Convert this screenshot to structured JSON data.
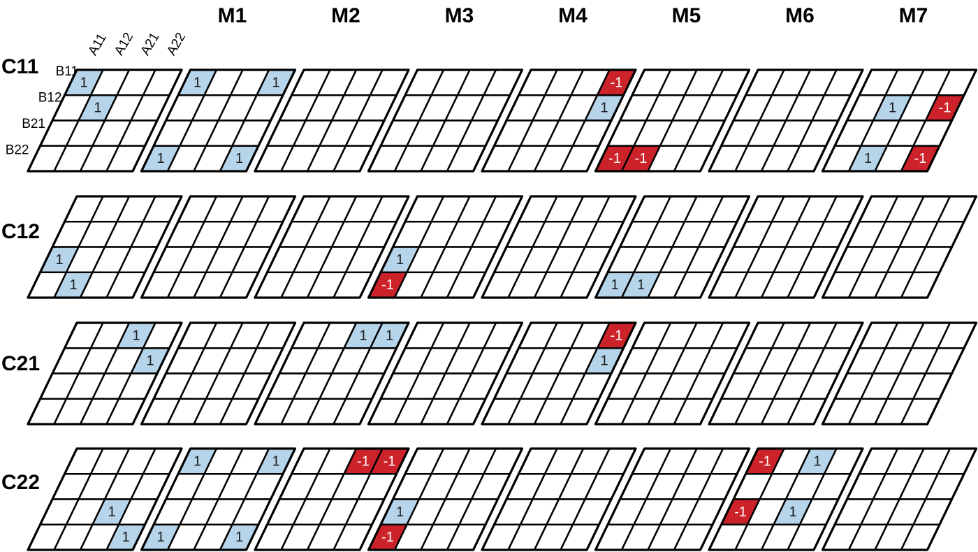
{
  "column_headers": [
    "M1",
    "M2",
    "M3",
    "M4",
    "M5",
    "M6",
    "M7"
  ],
  "a_labels": [
    "A11",
    "A12",
    "A21",
    "A22"
  ],
  "b_labels": [
    "B11",
    "B12",
    "B21",
    "B22"
  ],
  "rows": [
    {
      "label": "C11",
      "grids": [
        [
          [
            1,
            null,
            null,
            null
          ],
          [
            null,
            1,
            null,
            null
          ],
          [
            null,
            null,
            null,
            null
          ],
          [
            null,
            null,
            null,
            null
          ]
        ],
        [
          [
            1,
            null,
            null,
            1
          ],
          [
            null,
            null,
            null,
            null
          ],
          [
            null,
            null,
            null,
            null
          ],
          [
            1,
            null,
            null,
            1
          ]
        ],
        [
          [
            null,
            null,
            null,
            null
          ],
          [
            null,
            null,
            null,
            null
          ],
          [
            null,
            null,
            null,
            null
          ],
          [
            null,
            null,
            null,
            null
          ]
        ],
        [
          [
            null,
            null,
            null,
            null
          ],
          [
            null,
            null,
            null,
            null
          ],
          [
            null,
            null,
            null,
            null
          ],
          [
            null,
            null,
            null,
            null
          ]
        ],
        [
          [
            null,
            null,
            null,
            -1
          ],
          [
            null,
            null,
            null,
            1
          ],
          [
            null,
            null,
            null,
            null
          ],
          [
            null,
            null,
            null,
            null
          ]
        ],
        [
          [
            null,
            null,
            null,
            null
          ],
          [
            null,
            null,
            null,
            null
          ],
          [
            null,
            null,
            null,
            null
          ],
          [
            -1,
            -1,
            null,
            null
          ]
        ],
        [
          [
            null,
            null,
            null,
            null
          ],
          [
            null,
            null,
            null,
            null
          ],
          [
            null,
            null,
            null,
            null
          ],
          [
            null,
            null,
            null,
            null
          ]
        ],
        [
          [
            null,
            null,
            null,
            null
          ],
          [
            null,
            1,
            null,
            -1
          ],
          [
            null,
            null,
            null,
            null
          ],
          [
            null,
            1,
            null,
            -1
          ]
        ]
      ]
    },
    {
      "label": "C12",
      "grids": [
        [
          [
            null,
            null,
            null,
            null
          ],
          [
            null,
            null,
            null,
            null
          ],
          [
            1,
            null,
            null,
            null
          ],
          [
            null,
            1,
            null,
            null
          ]
        ],
        [
          [
            null,
            null,
            null,
            null
          ],
          [
            null,
            null,
            null,
            null
          ],
          [
            null,
            null,
            null,
            null
          ],
          [
            null,
            null,
            null,
            null
          ]
        ],
        [
          [
            null,
            null,
            null,
            null
          ],
          [
            null,
            null,
            null,
            null
          ],
          [
            null,
            null,
            null,
            null
          ],
          [
            null,
            null,
            null,
            null
          ]
        ],
        [
          [
            null,
            null,
            null,
            null
          ],
          [
            null,
            null,
            null,
            null
          ],
          [
            1,
            null,
            null,
            null
          ],
          [
            -1,
            null,
            null,
            null
          ]
        ],
        [
          [
            null,
            null,
            null,
            null
          ],
          [
            null,
            null,
            null,
            null
          ],
          [
            null,
            null,
            null,
            null
          ],
          [
            null,
            null,
            null,
            null
          ]
        ],
        [
          [
            null,
            null,
            null,
            null
          ],
          [
            null,
            null,
            null,
            null
          ],
          [
            null,
            null,
            null,
            null
          ],
          [
            1,
            1,
            null,
            null
          ]
        ],
        [
          [
            null,
            null,
            null,
            null
          ],
          [
            null,
            null,
            null,
            null
          ],
          [
            null,
            null,
            null,
            null
          ],
          [
            null,
            null,
            null,
            null
          ]
        ],
        [
          [
            null,
            null,
            null,
            null
          ],
          [
            null,
            null,
            null,
            null
          ],
          [
            null,
            null,
            null,
            null
          ],
          [
            null,
            null,
            null,
            null
          ]
        ]
      ]
    },
    {
      "label": "C21",
      "grids": [
        [
          [
            null,
            null,
            1,
            null
          ],
          [
            null,
            null,
            null,
            1
          ],
          [
            null,
            null,
            null,
            null
          ],
          [
            null,
            null,
            null,
            null
          ]
        ],
        [
          [
            null,
            null,
            null,
            null
          ],
          [
            null,
            null,
            null,
            null
          ],
          [
            null,
            null,
            null,
            null
          ],
          [
            null,
            null,
            null,
            null
          ]
        ],
        [
          [
            null,
            null,
            1,
            1
          ],
          [
            null,
            null,
            null,
            null
          ],
          [
            null,
            null,
            null,
            null
          ],
          [
            null,
            null,
            null,
            null
          ]
        ],
        [
          [
            null,
            null,
            null,
            null
          ],
          [
            null,
            null,
            null,
            null
          ],
          [
            null,
            null,
            null,
            null
          ],
          [
            null,
            null,
            null,
            null
          ]
        ],
        [
          [
            null,
            null,
            null,
            -1
          ],
          [
            null,
            null,
            null,
            1
          ],
          [
            null,
            null,
            null,
            null
          ],
          [
            null,
            null,
            null,
            null
          ]
        ],
        [
          [
            null,
            null,
            null,
            null
          ],
          [
            null,
            null,
            null,
            null
          ],
          [
            null,
            null,
            null,
            null
          ],
          [
            null,
            null,
            null,
            null
          ]
        ],
        [
          [
            null,
            null,
            null,
            null
          ],
          [
            null,
            null,
            null,
            null
          ],
          [
            null,
            null,
            null,
            null
          ],
          [
            null,
            null,
            null,
            null
          ]
        ],
        [
          [
            null,
            null,
            null,
            null
          ],
          [
            null,
            null,
            null,
            null
          ],
          [
            null,
            null,
            null,
            null
          ],
          [
            null,
            null,
            null,
            null
          ]
        ]
      ]
    },
    {
      "label": "C22",
      "grids": [
        [
          [
            null,
            null,
            null,
            null
          ],
          [
            null,
            null,
            null,
            null
          ],
          [
            null,
            null,
            1,
            null
          ],
          [
            null,
            null,
            null,
            1
          ]
        ],
        [
          [
            1,
            null,
            null,
            1
          ],
          [
            null,
            null,
            null,
            null
          ],
          [
            null,
            null,
            null,
            null
          ],
          [
            1,
            null,
            null,
            1
          ]
        ],
        [
          [
            null,
            null,
            -1,
            -1
          ],
          [
            null,
            null,
            null,
            null
          ],
          [
            null,
            null,
            null,
            null
          ],
          [
            null,
            null,
            null,
            null
          ]
        ],
        [
          [
            null,
            null,
            null,
            null
          ],
          [
            null,
            null,
            null,
            null
          ],
          [
            1,
            null,
            null,
            null
          ],
          [
            -1,
            null,
            null,
            null
          ]
        ],
        [
          [
            null,
            null,
            null,
            null
          ],
          [
            null,
            null,
            null,
            null
          ],
          [
            null,
            null,
            null,
            null
          ],
          [
            null,
            null,
            null,
            null
          ]
        ],
        [
          [
            null,
            null,
            null,
            null
          ],
          [
            null,
            null,
            null,
            null
          ],
          [
            null,
            null,
            null,
            null
          ],
          [
            null,
            null,
            null,
            null
          ]
        ],
        [
          [
            -1,
            null,
            1,
            null
          ],
          [
            null,
            null,
            null,
            null
          ],
          [
            -1,
            null,
            1,
            null
          ],
          [
            null,
            null,
            null,
            null
          ]
        ],
        [
          [
            null,
            null,
            null,
            null
          ],
          [
            null,
            null,
            null,
            null
          ],
          [
            null,
            null,
            null,
            null
          ],
          [
            null,
            null,
            null,
            null
          ]
        ]
      ]
    }
  ]
}
